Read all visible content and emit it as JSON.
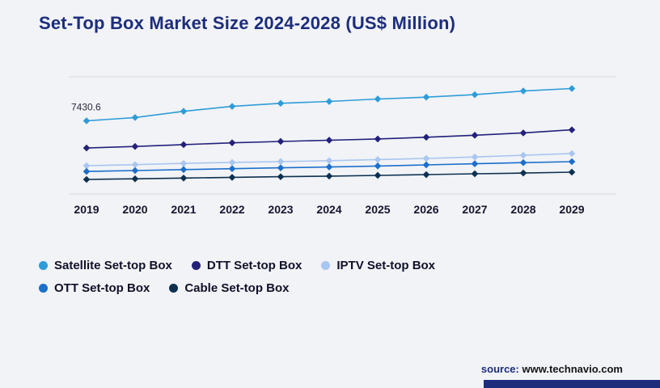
{
  "page": {
    "background": "#f1f3f7",
    "title": "Set-Top Box Market Size 2024-2028 (US$ Million)",
    "title_color": "#1d2d7c"
  },
  "chart_data": {
    "type": "line",
    "x": [
      2019,
      2020,
      2021,
      2022,
      2023,
      2024,
      2025,
      2026,
      2027,
      2028,
      2029
    ],
    "series": [
      {
        "name": "Satellite Set-top Box",
        "color": "#2f9cd8",
        "values": [
          7430.6,
          7700,
          8200,
          8600,
          8850,
          9000,
          9200,
          9350,
          9550,
          9850,
          10050
        ]
      },
      {
        "name": "DTT Set-top Box",
        "color": "#23217a",
        "values": [
          5230,
          5350,
          5500,
          5650,
          5760,
          5860,
          5960,
          6100,
          6260,
          6450,
          6700
        ]
      },
      {
        "name": "IPTV Set-top Box",
        "color": "#a9c6f0",
        "values": [
          3790,
          3880,
          3980,
          4060,
          4130,
          4200,
          4290,
          4380,
          4500,
          4640,
          4780
        ]
      },
      {
        "name": "OTT Set-top Box",
        "color": "#1c6fca",
        "values": [
          3330,
          3400,
          3480,
          3550,
          3620,
          3690,
          3770,
          3860,
          3950,
          4040,
          4120
        ]
      },
      {
        "name": "Cable Set-top Box",
        "color": "#0d3050",
        "values": [
          2680,
          2730,
          2790,
          2850,
          2900,
          2950,
          3010,
          3070,
          3140,
          3200,
          3270
        ]
      }
    ],
    "ylim": [
      1500,
      11000
    ],
    "annotation": {
      "text": "7430.6",
      "series_index": 0,
      "point_index": 0
    },
    "grid": "top and bottom horizontal lines only",
    "marker": "diamond",
    "legend_position": "bottom-left",
    "legend_rows": [
      3,
      2
    ],
    "grid_color": "#d7dae0"
  },
  "footer": {
    "source_label": "source:",
    "source_url": "www.technavio.com"
  }
}
